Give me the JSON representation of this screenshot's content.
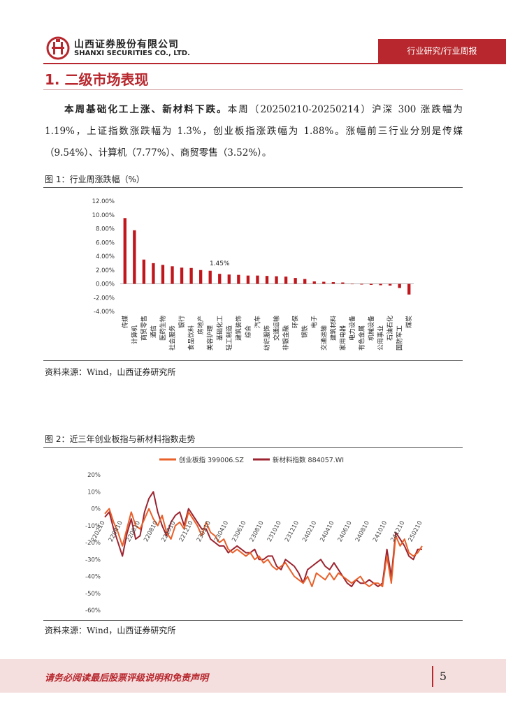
{
  "header": {
    "company_cn": "山西证券股份有限公司",
    "company_en": "SHANXI SECURITIES CO., LTD.",
    "report_type": "行业研究/行业周报",
    "logo_icon": "shanxi-securities-logo",
    "brand_color": "#b7272d"
  },
  "section": {
    "title": "1. 二级市场表现"
  },
  "paragraph": {
    "lead": "本周基础化工上涨、新材料下跌。",
    "body": "本周（20250210-20250214）沪深 300 涨跌幅为 1.19%，上证指数涨跌幅为 1.3%，创业板指涨跌幅为 1.88%。涨幅前三行业分别是传媒（9.54%）、计算机（7.77%）、商贸零售（3.52%）。"
  },
  "figure1": {
    "title": "图 1：行业周涨跌幅（%）",
    "source": "资料来源：Wind，山西证券研究所"
  },
  "figure2": {
    "title": "图 2：近三年创业板指与新材料指数走势",
    "source": "资料来源：Wind，山西证券研究所"
  },
  "footer": {
    "disclaimer": "请务必阅读最后股票评级说明和免责声明",
    "page": "5"
  },
  "chart_data": [
    {
      "type": "bar",
      "title": "图 1：行业周涨跌幅（%）",
      "categories": [
        "传媒",
        "计算机",
        "商贸零售",
        "通信",
        "医药生物",
        "社会服务",
        "银行",
        "食品饮料",
        "房地产",
        "美容护理",
        "基础化工",
        "轻工制造",
        "建筑装饰",
        "综合",
        "汽车",
        "纺织服饰",
        "交通运输",
        "非银金融",
        "环保",
        "钢铁",
        "电子",
        "交通运输",
        "建筑材料",
        "家用电器",
        "电力设备",
        "有色金属",
        "机械设备",
        "公用事业",
        "石油石化",
        "国防军工",
        "煤炭"
      ],
      "values": [
        9.54,
        7.77,
        3.52,
        3.0,
        2.75,
        2.55,
        2.35,
        2.3,
        2.0,
        1.9,
        1.45,
        1.35,
        1.3,
        1.2,
        1.2,
        1.15,
        1.1,
        1.05,
        0.85,
        0.7,
        0.35,
        0.3,
        0.25,
        0.2,
        -0.05,
        -0.1,
        -0.15,
        -0.2,
        -0.25,
        -0.6,
        -1.55
      ],
      "annotation": "1.45%",
      "annotation_index": 10,
      "ylim": [
        -4,
        12
      ],
      "yticks": [
        "12.00%",
        "10.00%",
        "8.00%",
        "6.00%",
        "4.00%",
        "2.00%",
        "0.00%",
        "-2.00%",
        "-4.00%"
      ],
      "bar_color": "#c0171d"
    },
    {
      "type": "line",
      "title": "图 2：近三年创业板指与新材料指数走势",
      "series": [
        {
          "name": "创业板指 399006.SZ",
          "color": "#e8602a",
          "x_index": [
            0,
            2,
            4,
            6,
            8,
            10,
            12,
            14,
            16,
            18,
            20,
            22,
            24,
            26,
            28,
            30,
            32,
            34,
            36,
            38,
            40,
            42,
            44,
            46,
            48,
            50,
            52,
            54,
            56,
            58,
            60,
            62,
            64,
            66,
            68,
            70,
            72,
            74,
            76,
            78,
            80,
            82,
            84,
            86,
            88,
            90,
            92,
            94,
            96,
            98,
            100,
            102,
            104,
            106,
            108,
            110,
            112,
            114,
            116,
            118,
            120,
            122,
            124,
            126,
            128,
            130,
            132,
            134,
            136,
            138,
            140,
            142,
            144
          ],
          "values": [
            -3,
            0,
            -8,
            -14,
            -22,
            -12,
            -2,
            -10,
            -12,
            -6,
            0,
            -6,
            -10,
            -4,
            -14,
            -18,
            -10,
            -8,
            -12,
            -2,
            -6,
            -10,
            -16,
            -8,
            -14,
            -16,
            -20,
            -18,
            -24,
            -26,
            -24,
            -26,
            -28,
            -26,
            -30,
            -28,
            -32,
            -30,
            -34,
            -36,
            -34,
            -32,
            -36,
            -40,
            -42,
            -44,
            -40,
            -46,
            -38,
            -40,
            -42,
            -38,
            -42,
            -38,
            -40,
            -42,
            -44,
            -42,
            -40,
            -44,
            -46,
            -44,
            -44,
            -46,
            -28,
            -44,
            -16,
            -22,
            -18,
            -26,
            -28,
            -26,
            -22
          ]
        },
        {
          "name": "新材料指数 884057.WI",
          "color": "#9c2430",
          "x_index": [
            0,
            2,
            4,
            6,
            8,
            10,
            12,
            14,
            16,
            18,
            20,
            22,
            24,
            26,
            28,
            30,
            32,
            34,
            36,
            38,
            40,
            42,
            44,
            46,
            48,
            50,
            52,
            54,
            56,
            58,
            60,
            62,
            64,
            66,
            68,
            70,
            72,
            74,
            76,
            78,
            80,
            82,
            84,
            86,
            88,
            90,
            92,
            94,
            96,
            98,
            100,
            102,
            104,
            106,
            108,
            110,
            112,
            114,
            116,
            118,
            120,
            122,
            124,
            126,
            128,
            130,
            132,
            134,
            136,
            138,
            140,
            142,
            144
          ],
          "values": [
            -5,
            -2,
            -12,
            -20,
            -28,
            -15,
            -6,
            -18,
            -16,
            -2,
            6,
            10,
            -2,
            -10,
            -16,
            -8,
            -4,
            -2,
            -10,
            0,
            -4,
            -8,
            -12,
            -12,
            -18,
            -20,
            -22,
            -22,
            -26,
            -24,
            -22,
            -24,
            -26,
            -26,
            -24,
            -30,
            -30,
            -28,
            -28,
            -34,
            -36,
            -30,
            -32,
            -34,
            -38,
            -44,
            -36,
            -34,
            -32,
            -30,
            -34,
            -36,
            -32,
            -36,
            -40,
            -44,
            -46,
            -42,
            -44,
            -44,
            -42,
            -44,
            -46,
            -44,
            -24,
            -40,
            -14,
            -18,
            -22,
            -28,
            -30,
            -24,
            -24
          ]
        }
      ],
      "x_tick_labels": [
        "220210",
        "220410",
        "220610",
        "220810",
        "221010",
        "221210",
        "230210",
        "230410",
        "230610",
        "230810",
        "231010",
        "231210",
        "240210",
        "240410",
        "240610",
        "240810",
        "241010",
        "241210",
        "250210"
      ],
      "yticks": [
        "20%",
        "10%",
        "0%",
        "-10%",
        "-20%",
        "-30%",
        "-40%",
        "-50%",
        "-60%"
      ],
      "ylim": [
        -60,
        20
      ]
    }
  ]
}
